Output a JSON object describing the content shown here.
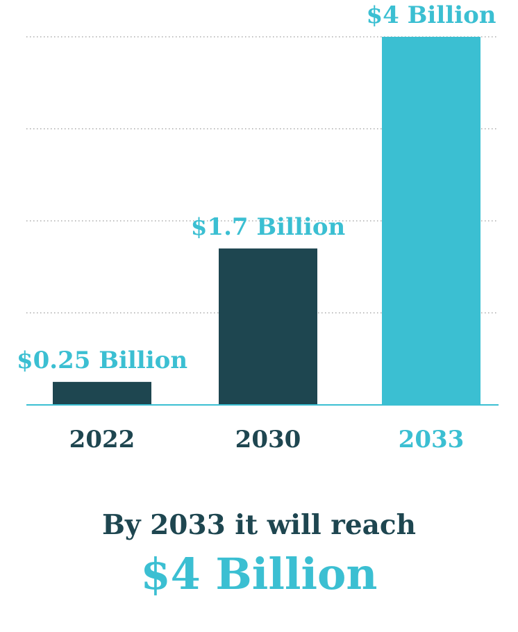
{
  "chart_data": {
    "type": "bar",
    "categories": [
      "2022",
      "2030",
      "2033"
    ],
    "values": [
      0.25,
      1.7,
      4
    ],
    "value_labels": [
      "$0.25 Billion",
      "$1.7 Billion",
      "$4 Billion"
    ],
    "ylim": [
      0,
      4
    ],
    "grid": true,
    "highlight_category": "2033"
  },
  "caption": {
    "line1": "By 2033 it will reach",
    "line2": "$4 Billion"
  },
  "colors": {
    "dark": "#1e4650",
    "accent": "#3bbfd2",
    "grid": "#9a9a9a"
  }
}
